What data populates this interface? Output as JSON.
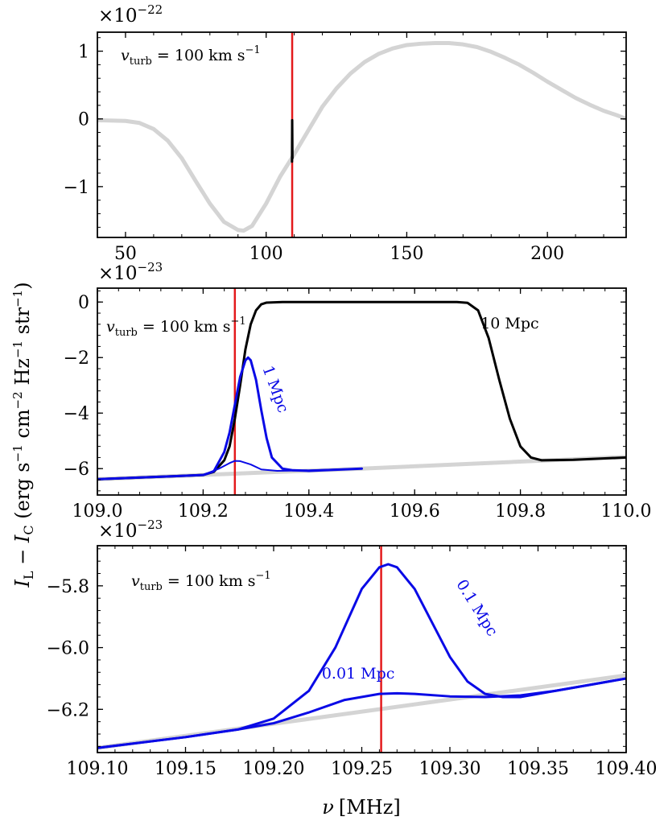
{
  "colors": {
    "gray": "#d4d4d4",
    "blue": "#0a0ae6",
    "black": "#000000",
    "red": "#e31a1c"
  },
  "chart_data": [
    {
      "id": "p1",
      "type": "line",
      "scale_label": "×10",
      "scale_exponent": "−22",
      "annotation": {
        "text": "vturb = 100 km s−1",
        "main": "v",
        "sub": "turb",
        "eq": " = 100 km s",
        "sup": "−1"
      },
      "xlim": [
        40,
        228
      ],
      "ylim": [
        -1.75,
        1.28
      ],
      "xticks": [
        50,
        100,
        150,
        200
      ],
      "xticklabels": [
        "50",
        "100",
        "150",
        "200"
      ],
      "yticks": [
        -1,
        0,
        1
      ],
      "yticklabels": [
        "−1",
        "0",
        "1"
      ],
      "vline_x": 109.26,
      "series": [
        {
          "name": "full-curve",
          "color": "gray",
          "width": 5,
          "x": [
            40,
            50,
            55,
            60,
            65,
            70,
            75,
            80,
            85,
            90,
            92,
            95,
            100,
            105,
            110,
            115,
            120,
            125,
            130,
            135,
            140,
            145,
            150,
            155,
            160,
            165,
            170,
            175,
            180,
            185,
            190,
            195,
            200,
            205,
            210,
            215,
            220,
            225,
            228
          ],
          "y": [
            -0.02,
            -0.03,
            -0.06,
            -0.15,
            -0.32,
            -0.58,
            -0.92,
            -1.25,
            -1.52,
            -1.64,
            -1.65,
            -1.58,
            -1.25,
            -0.85,
            -0.52,
            -0.17,
            0.18,
            0.45,
            0.67,
            0.84,
            0.96,
            1.04,
            1.09,
            1.11,
            1.12,
            1.12,
            1.1,
            1.06,
            0.99,
            0.9,
            0.8,
            0.68,
            0.55,
            0.43,
            0.31,
            0.21,
            0.12,
            0.05,
            0.0
          ]
        },
        {
          "name": "absorption-spike",
          "color": "black",
          "width": 3,
          "x": [
            109.2,
            109.26,
            109.35
          ],
          "y": [
            -0.63,
            -0.02,
            -0.58
          ]
        }
      ]
    },
    {
      "id": "p2",
      "type": "line",
      "scale_label": "×10",
      "scale_exponent": "−23",
      "annotation": {
        "text": "vturb = 100 km s−1",
        "main": "v",
        "sub": "turb",
        "eq": " = 100 km s",
        "sup": "−1"
      },
      "xlim": [
        109.0,
        110.0
      ],
      "ylim": [
        -6.95,
        0.5
      ],
      "xticks": [
        109.0,
        109.2,
        109.4,
        109.6,
        109.8,
        110.0
      ],
      "xticklabels": [
        "109.0",
        "109.2",
        "109.4",
        "109.6",
        "109.8",
        "110.0"
      ],
      "yticks": [
        -6,
        -4,
        -2,
        0
      ],
      "yticklabels": [
        "−6",
        "−4",
        "−2",
        "0"
      ],
      "vline_x": 109.26,
      "curve_labels": [
        {
          "text": "10 Mpc",
          "x": 109.78,
          "y": -0.95,
          "color": "black",
          "rotate": 0
        },
        {
          "text": "1 Mpc",
          "x": 109.328,
          "y": -3.2,
          "color": "blue",
          "rotate": 70
        }
      ],
      "series": [
        {
          "name": "continuum",
          "color": "gray",
          "width": 5,
          "x": [
            109.0,
            109.5,
            110.0
          ],
          "y": [
            -6.38,
            -6.0,
            -5.58
          ]
        },
        {
          "name": "10 Mpc",
          "color": "black",
          "width": 3,
          "x": [
            109.0,
            109.15,
            109.2,
            109.22,
            109.24,
            109.25,
            109.26,
            109.27,
            109.28,
            109.29,
            109.3,
            109.31,
            109.32,
            109.35,
            109.4,
            109.5,
            109.6,
            109.68,
            109.7,
            109.72,
            109.74,
            109.76,
            109.78,
            109.8,
            109.82,
            109.84,
            109.9,
            110.0
          ],
          "y": [
            -6.38,
            -6.27,
            -6.23,
            -6.12,
            -5.7,
            -5.2,
            -4.2,
            -3.0,
            -1.7,
            -0.8,
            -0.3,
            -0.08,
            -0.02,
            0.0,
            0.0,
            0.0,
            0.0,
            0.0,
            -0.03,
            -0.3,
            -1.3,
            -2.8,
            -4.2,
            -5.2,
            -5.6,
            -5.7,
            -5.68,
            -5.6
          ]
        },
        {
          "name": "1 Mpc",
          "color": "blue",
          "width": 3,
          "x": [
            109.0,
            109.15,
            109.2,
            109.22,
            109.24,
            109.25,
            109.26,
            109.27,
            109.28,
            109.285,
            109.29,
            109.3,
            109.31,
            109.32,
            109.33,
            109.35,
            109.37,
            109.4,
            109.5
          ],
          "y": [
            -6.38,
            -6.27,
            -6.23,
            -6.1,
            -5.4,
            -4.7,
            -3.7,
            -2.7,
            -2.1,
            -2.0,
            -2.1,
            -2.8,
            -3.9,
            -4.9,
            -5.6,
            -6.0,
            -6.06,
            -6.08,
            -6.0
          ]
        },
        {
          "name": "0.1 Mpc",
          "color": "blue",
          "width": 2,
          "x": [
            109.0,
            109.15,
            109.2,
            109.23,
            109.25,
            109.26,
            109.27,
            109.29,
            109.31,
            109.34,
            109.38,
            109.45,
            109.5
          ],
          "y": [
            -6.38,
            -6.27,
            -6.23,
            -6.0,
            -5.8,
            -5.72,
            -5.73,
            -5.85,
            -6.03,
            -6.08,
            -6.07,
            -6.03,
            -6.0
          ]
        }
      ]
    },
    {
      "id": "p3",
      "type": "line",
      "scale_label": "×10",
      "scale_exponent": "−23",
      "annotation": {
        "text": "vturb = 100 km s−1",
        "main": "v",
        "sub": "turb",
        "eq": " = 100 km s",
        "sup": "−1"
      },
      "xlim": [
        109.1,
        109.4
      ],
      "ylim": [
        -6.34,
        -5.67
      ],
      "xticks": [
        109.1,
        109.15,
        109.2,
        109.25,
        109.3,
        109.35,
        109.4
      ],
      "xticklabels": [
        "109.10",
        "109.15",
        "109.20",
        "109.25",
        "109.30",
        "109.35",
        "109.40"
      ],
      "yticks": [
        -6.2,
        -6.0,
        -5.8
      ],
      "yticklabels": [
        "−6.2",
        "−6.0",
        "−5.8"
      ],
      "vline_x": 109.261,
      "xlabel_main": "ν",
      "xlabel_unit": "[MHz]",
      "ylabel_text": "IL − IC (erg s−1 cm−2 Hz−1 str−1)",
      "ylabel_parts": {
        "i1": "I",
        "s1": "L",
        "mid": " − ",
        "i2": "I",
        "s2": "C",
        "u1": " (erg s",
        "e1": "−1",
        "u2": " cm",
        "e2": "−2",
        "u3": " Hz",
        "e3": "−1",
        "u4": " str",
        "e4": "−1",
        "u5": ")"
      },
      "curve_labels": [
        {
          "text": "0.1 Mpc",
          "x": 109.313,
          "y": -5.88,
          "color": "blue",
          "rotate": 58
        },
        {
          "text": "0.01 Mpc",
          "x": 109.248,
          "y": -6.1,
          "color": "blue",
          "rotate": 0
        }
      ],
      "series": [
        {
          "name": "continuum",
          "color": "gray",
          "width": 5,
          "x": [
            109.1,
            109.4
          ],
          "y": [
            -6.325,
            -6.09
          ]
        },
        {
          "name": "0.1 Mpc",
          "color": "blue",
          "width": 3,
          "x": [
            109.1,
            109.15,
            109.18,
            109.2,
            109.22,
            109.235,
            109.25,
            109.26,
            109.265,
            109.27,
            109.28,
            109.29,
            109.3,
            109.31,
            109.32,
            109.33,
            109.34,
            109.36,
            109.38,
            109.4
          ],
          "y": [
            -6.325,
            -6.29,
            -6.265,
            -6.23,
            -6.14,
            -6.0,
            -5.81,
            -5.74,
            -5.73,
            -5.74,
            -5.81,
            -5.92,
            -6.03,
            -6.11,
            -6.15,
            -6.16,
            -6.16,
            -6.14,
            -6.12,
            -6.1
          ]
        },
        {
          "name": "0.01 Mpc",
          "color": "blue",
          "width": 3,
          "x": [
            109.1,
            109.15,
            109.18,
            109.2,
            109.22,
            109.24,
            109.26,
            109.27,
            109.28,
            109.3,
            109.32,
            109.34,
            109.36,
            109.38,
            109.4
          ],
          "y": [
            -6.325,
            -6.29,
            -6.265,
            -6.245,
            -6.21,
            -6.17,
            -6.15,
            -6.148,
            -6.15,
            -6.158,
            -6.16,
            -6.155,
            -6.14,
            -6.12,
            -6.1
          ]
        }
      ]
    }
  ]
}
